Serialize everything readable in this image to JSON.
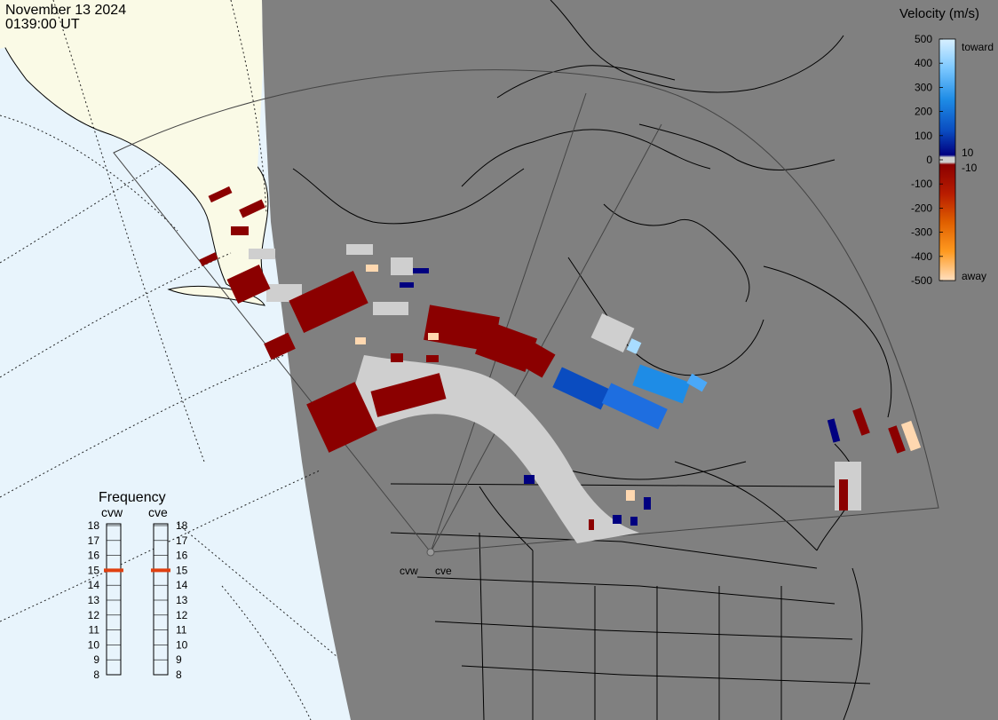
{
  "header": {
    "date": "November 13 2024",
    "time": "0139:00 UT"
  },
  "colorbar": {
    "title": "Velocity (m/s)",
    "tick_labels": [
      "500",
      "400",
      "300",
      "200",
      "100",
      "0",
      "-100",
      "-200",
      "-300",
      "-400",
      "-500"
    ],
    "positive_threshold": "10",
    "negative_threshold": "-10",
    "toward_label": "toward",
    "away_label": "away",
    "colors": {
      "toward_high": "#d8f0ff",
      "toward_mid": "#1e8ce6",
      "toward_low": "#000080",
      "zero": "#cfcfcf",
      "away_low": "#8b0000",
      "away_mid": "#e06000",
      "away_high": "#ffe0c0"
    }
  },
  "frequency": {
    "title": "Frequency",
    "radars": [
      "cvw",
      "cve"
    ],
    "ticks": [
      "18",
      "17",
      "16",
      "15",
      "14",
      "13",
      "12",
      "11",
      "10",
      "9",
      "8"
    ],
    "values_mhz": [
      15,
      15
    ],
    "marker_color": "#e04010"
  },
  "map": {
    "radar_labels": [
      "cvw",
      "cve"
    ],
    "land_color": "#808080",
    "ocean_color": "#e8f4fc",
    "ice_color": "#fafae6",
    "ground_scatter_color": "#cfcfcf"
  }
}
